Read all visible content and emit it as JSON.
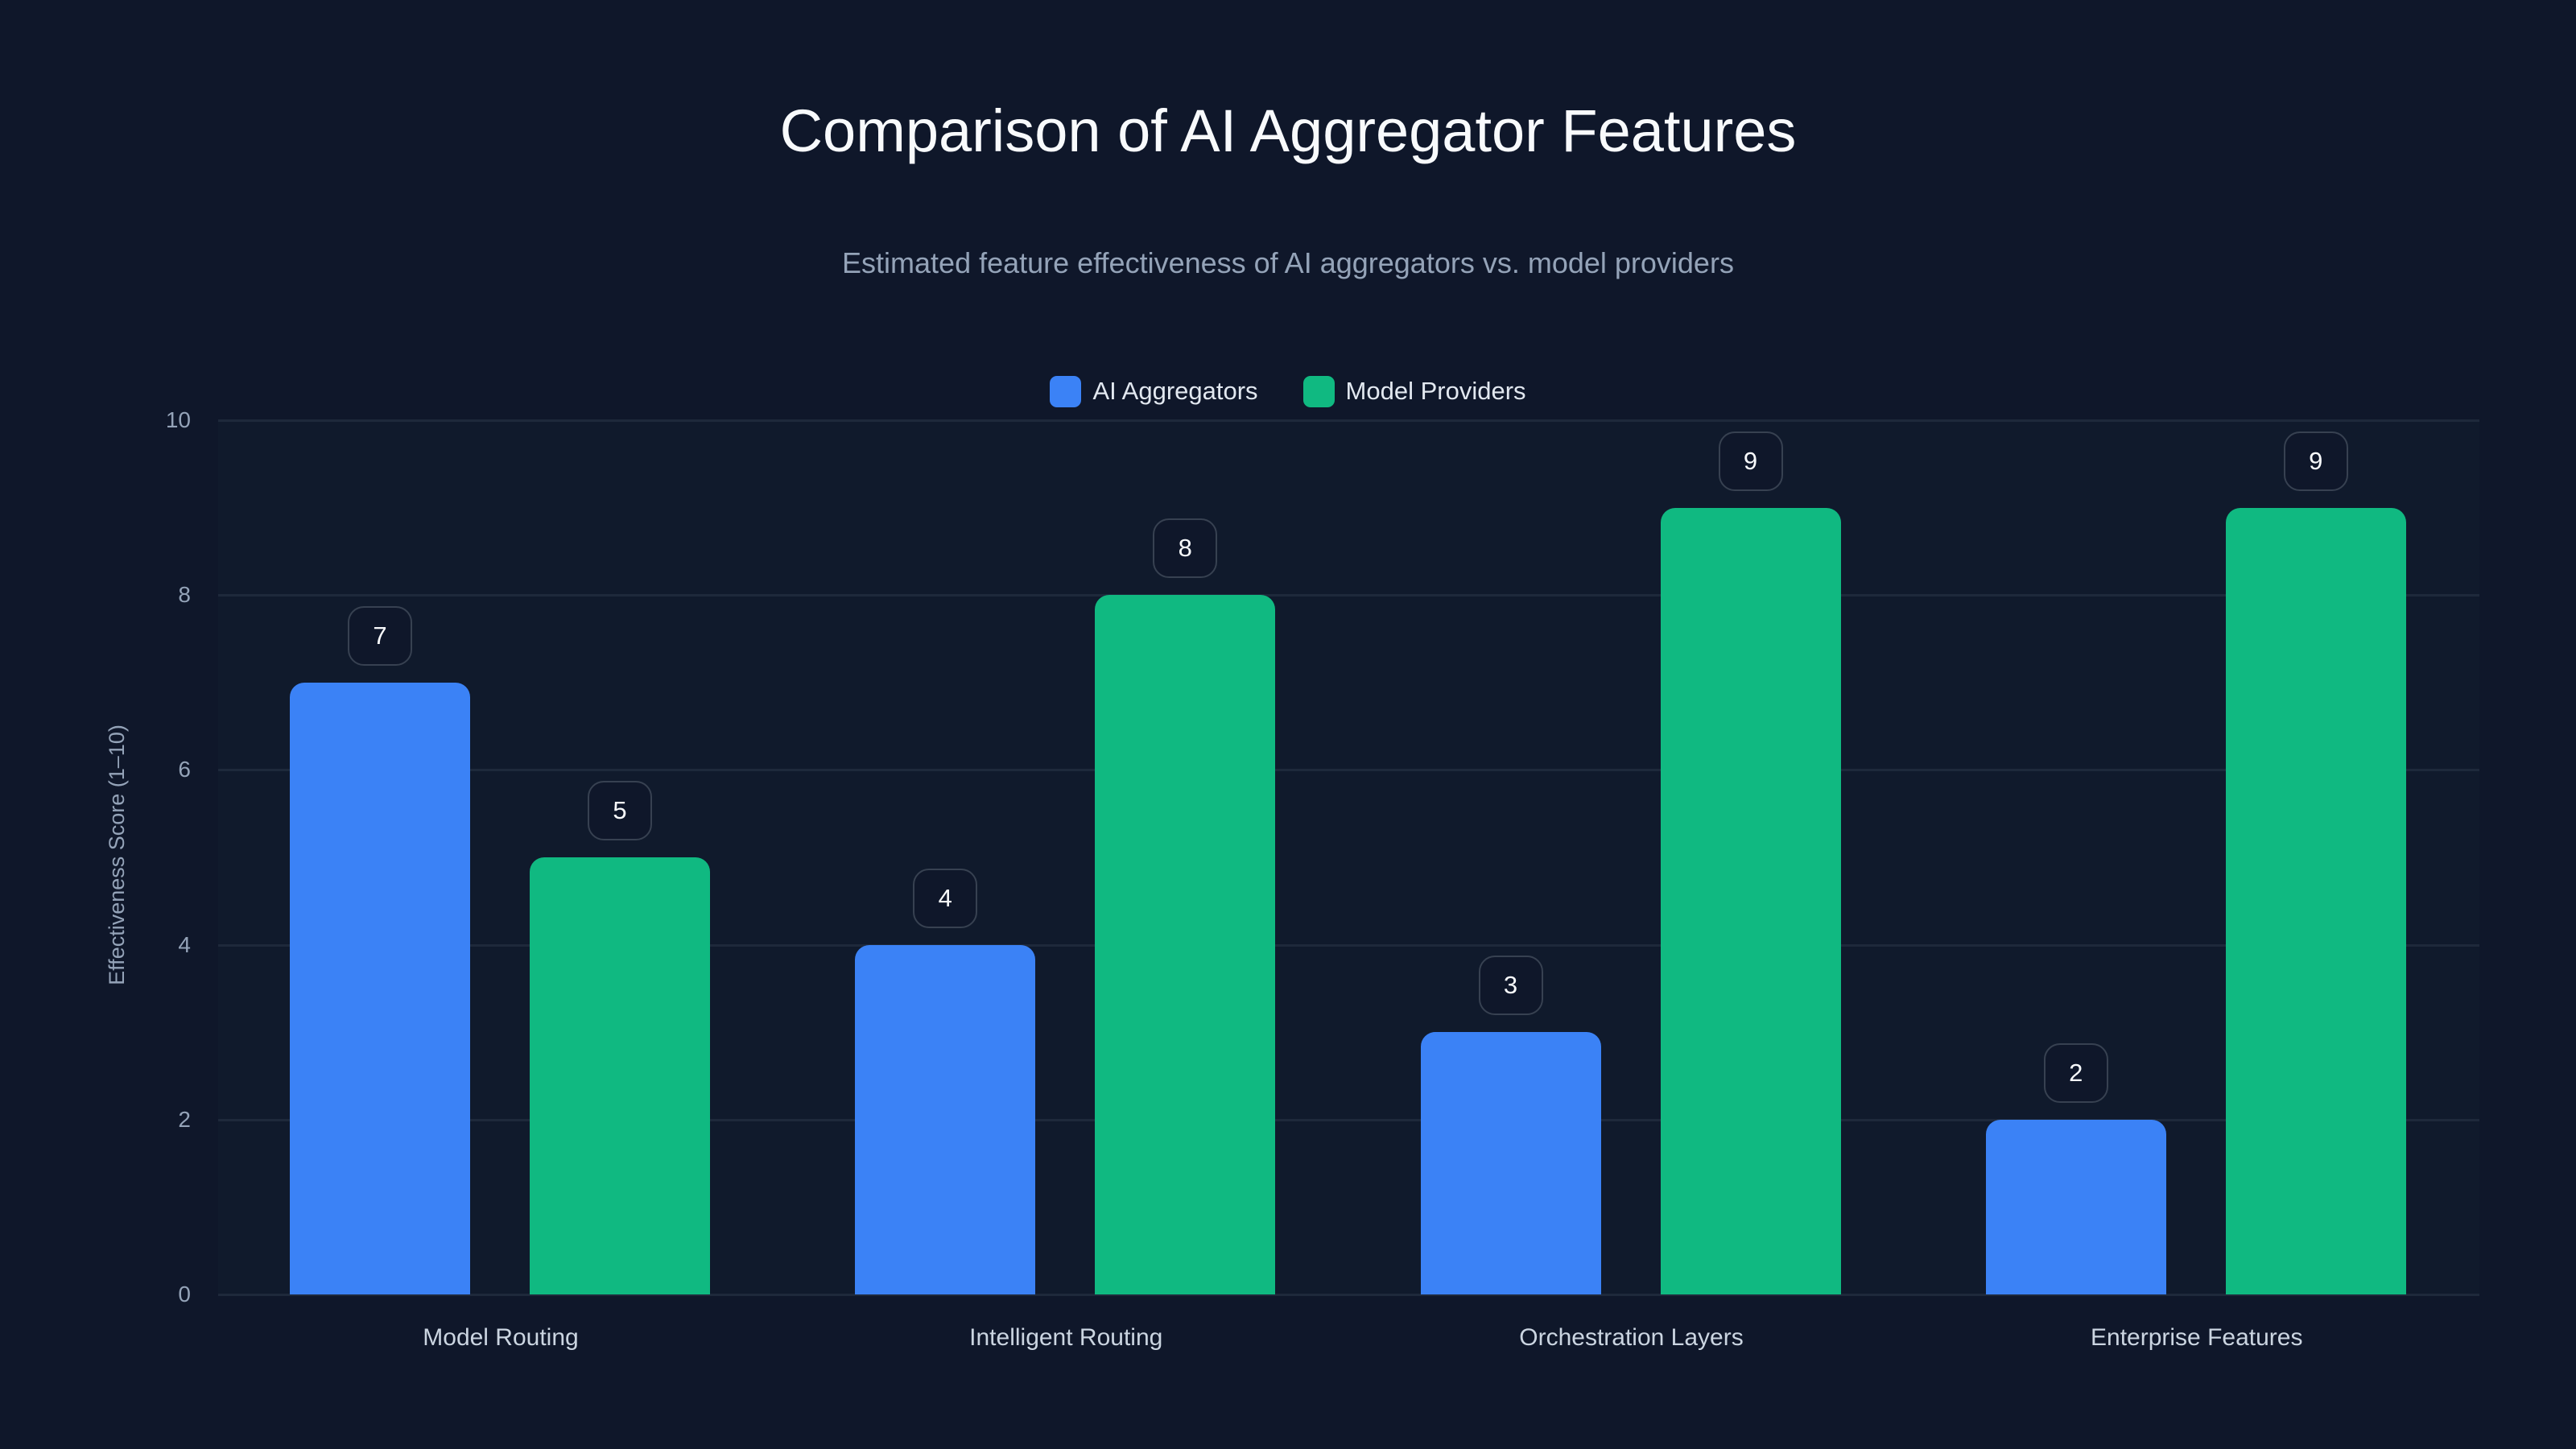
{
  "chart_data": {
    "type": "bar",
    "title": "Comparison of AI Aggregator Features",
    "subtitle": "Estimated feature effectiveness of AI aggregators vs. model providers",
    "xlabel": "",
    "ylabel": "Effectiveness Score (1–10)",
    "ylim": [
      0,
      10
    ],
    "yticks": [
      "0",
      "2",
      "4",
      "6",
      "8",
      "10"
    ],
    "grid": true,
    "legend_position": "top-center",
    "categories": [
      "Model Routing",
      "Intelligent Routing",
      "Orchestration Layers",
      "Enterprise Features"
    ],
    "series": [
      {
        "name": "AI Aggregators",
        "color": "#3b82f6",
        "values": [
          7,
          4,
          3,
          2
        ]
      },
      {
        "name": "Model Providers",
        "color": "#10b981",
        "values": [
          5,
          8,
          9,
          9
        ]
      }
    ]
  }
}
